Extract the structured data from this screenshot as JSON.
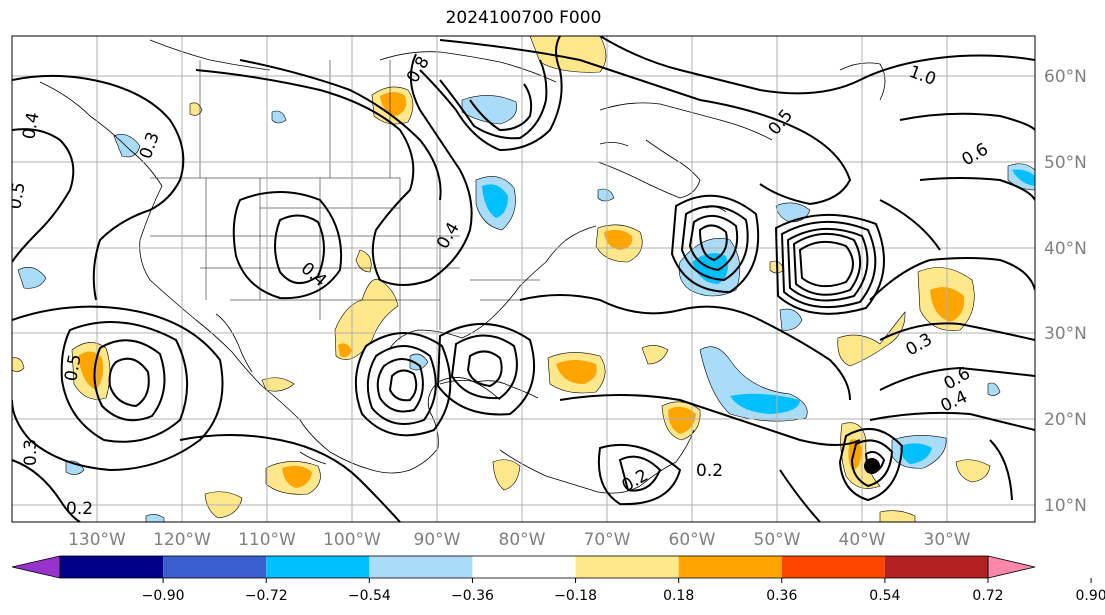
{
  "title": "2024100700 F000",
  "map": {
    "latitude_labels": [
      "60°N",
      "50°N",
      "40°N",
      "30°N",
      "20°N",
      "10°N"
    ],
    "longitude_labels": [
      "130°W",
      "120°W",
      "110°W",
      "100°W",
      "90°W",
      "80°W",
      "70°W",
      "60°W",
      "50°W",
      "40°W",
      "30°W"
    ],
    "gridlines": true
  },
  "contour_labels": [
    "0.2",
    "0.2",
    "0.2",
    "0.3",
    "0.3",
    "0.3",
    "0.4",
    "0.4",
    "0.4",
    "0.4",
    "0.5",
    "0.5",
    "0.5",
    "0.6",
    "0.6",
    "1.0",
    "0.8"
  ],
  "colorbar": {
    "ticks": [
      "−0.90",
      "−0.72",
      "−0.54",
      "−0.36",
      "−0.18",
      "0.18",
      "0.36",
      "0.54",
      "0.72",
      "0.90"
    ],
    "colors": [
      "#9932cc",
      "#00008b",
      "#3a5fcd",
      "#00bfff",
      "#aadcf8",
      "#ffffff",
      "#ffe88c",
      "#ffa500",
      "#ff4500",
      "#b22222",
      "#ff88aa"
    ]
  }
}
